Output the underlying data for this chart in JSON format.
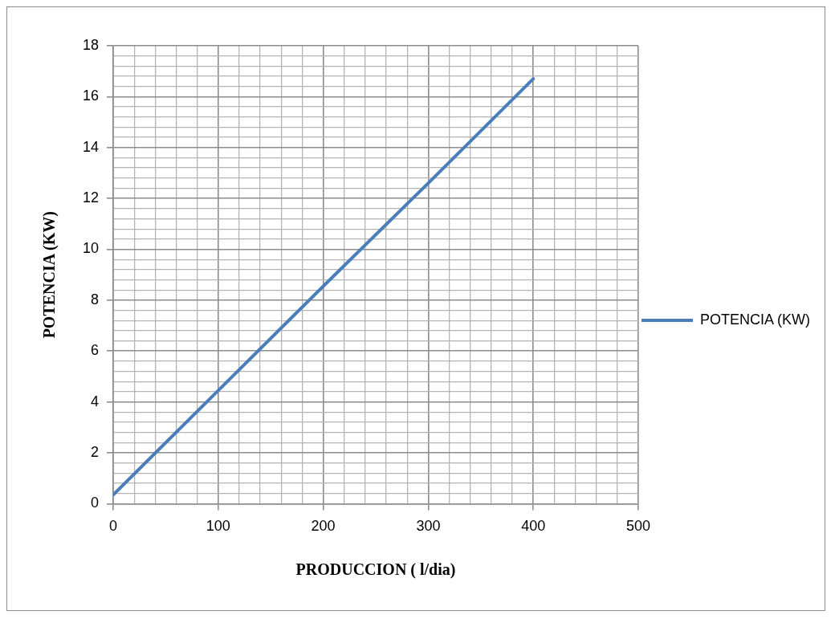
{
  "chart_data": {
    "type": "line",
    "xlabel": "PRODUCCION ( l/dia)",
    "ylabel": "POTENCIA (KW)",
    "x": [
      0,
      100,
      200,
      300,
      400
    ],
    "series": [
      {
        "name": "POTENCIA (KW)",
        "color": "#4a7ebb",
        "values": [
          0.35,
          4.45,
          8.55,
          12.6,
          16.7
        ]
      }
    ],
    "xlim": [
      0,
      500
    ],
    "ylim": [
      0,
      18
    ],
    "xticks": [
      0,
      {
        "value": 20,
        "label": null
      },
      {
        "value": 40,
        "label": null
      },
      {
        "value": 60,
        "label": null
      },
      {
        "value": 80,
        "label": null
      },
      100,
      {
        "value": 120,
        "label": null
      },
      {
        "value": 140,
        "label": null
      },
      {
        "value": 160,
        "label": null
      },
      {
        "value": 180,
        "label": null
      },
      200,
      {
        "value": 220,
        "label": null
      },
      {
        "value": 240,
        "label": null
      },
      {
        "value": 260,
        "label": null
      },
      {
        "value": 280,
        "label": null
      },
      300,
      {
        "value": 320,
        "label": null
      },
      {
        "value": 340,
        "label": null
      },
      {
        "value": 360,
        "label": null
      },
      {
        "value": 380,
        "label": null
      },
      400,
      {
        "value": 420,
        "label": null
      },
      {
        "value": 440,
        "label": null
      },
      {
        "value": 460,
        "label": null
      },
      {
        "value": 480,
        "label": null
      },
      500
    ],
    "yticks": [
      0,
      {
        "value": 0.4,
        "label": null
      },
      {
        "value": 0.8,
        "label": null
      },
      {
        "value": 1.2,
        "label": null
      },
      {
        "value": 1.6,
        "label": null
      },
      2,
      {
        "value": 2.4,
        "label": null
      },
      {
        "value": 2.8,
        "label": null
      },
      {
        "value": 3.2,
        "label": null
      },
      {
        "value": 3.6,
        "label": null
      },
      4,
      {
        "value": 4.4,
        "label": null
      },
      {
        "value": 4.8,
        "label": null
      },
      {
        "value": 5.2,
        "label": null
      },
      {
        "value": 5.6,
        "label": null
      },
      6,
      {
        "value": 6.4,
        "label": null
      },
      {
        "value": 6.8,
        "label": null
      },
      {
        "value": 7.2,
        "label": null
      },
      {
        "value": 7.6,
        "label": null
      },
      8,
      {
        "value": 8.4,
        "label": null
      },
      {
        "value": 8.8,
        "label": null
      },
      {
        "value": 9.2,
        "label": null
      },
      {
        "value": 9.6,
        "label": null
      },
      10,
      {
        "value": 10.4,
        "label": null
      },
      {
        "value": 10.8,
        "label": null
      },
      {
        "value": 11.2,
        "label": null
      },
      {
        "value": 11.6,
        "label": null
      },
      12,
      {
        "value": 12.4,
        "label": null
      },
      {
        "value": 12.8,
        "label": null
      },
      {
        "value": 13.2,
        "label": null
      },
      {
        "value": 13.6,
        "label": null
      },
      14,
      {
        "value": 14.4,
        "label": null
      },
      {
        "value": 14.8,
        "label": null
      },
      {
        "value": 15.2,
        "label": null
      },
      {
        "value": 15.6,
        "label": null
      },
      16,
      {
        "value": 16.4,
        "label": null
      },
      {
        "value": 16.8,
        "label": null
      },
      {
        "value": 17.2,
        "label": null
      },
      {
        "value": 17.6,
        "label": null
      },
      18
    ],
    "grid": true,
    "legend": "right",
    "marker": "none",
    "line_style": "solid"
  }
}
